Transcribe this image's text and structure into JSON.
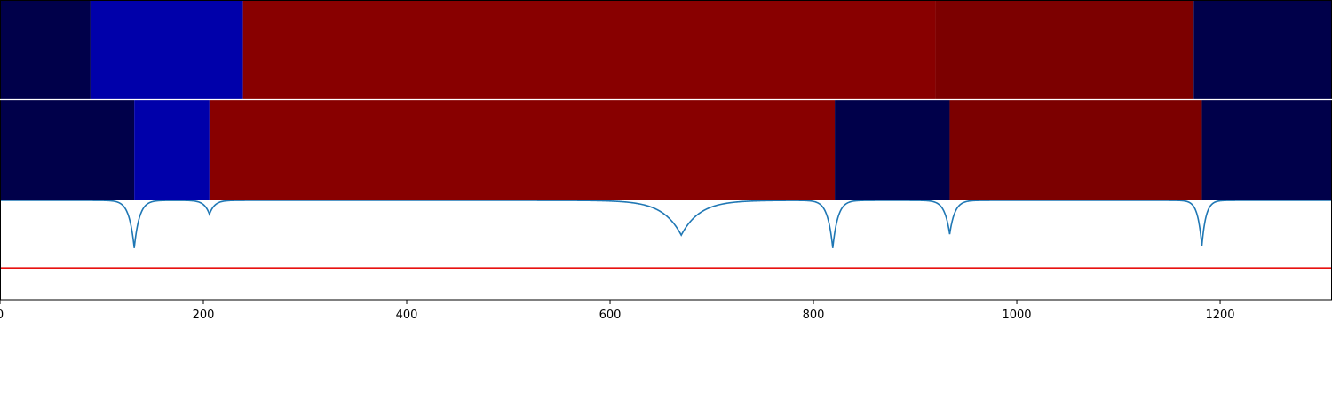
{
  "chart_data": {
    "type": "heatmap",
    "title": "",
    "xlabel": "",
    "ylabel": "",
    "xlim": [
      0,
      1310
    ],
    "x_ticks": [
      0,
      200,
      400,
      600,
      800,
      1000,
      1200
    ],
    "x_tick_labels": [
      "0",
      "200",
      "400",
      "600",
      "800",
      "1000",
      "1200"
    ],
    "colors": {
      "dark_navy": "#00004a",
      "blue": "#0000aa",
      "red": "#880000",
      "dark_red": "#7c0000",
      "signal_line": "#1f77b4",
      "threshold_line": "#e8110f"
    },
    "segment_rows": [
      {
        "segments": [
          {
            "start": 0,
            "end": 89,
            "color": "#00004a"
          },
          {
            "start": 89,
            "end": 239,
            "color": "#0000aa"
          },
          {
            "start": 239,
            "end": 920,
            "color": "#880000"
          },
          {
            "start": 920,
            "end": 1174,
            "color": "#7c0000"
          },
          {
            "start": 1174,
            "end": 1310,
            "color": "#00004a"
          }
        ]
      },
      {
        "segments": [
          {
            "start": 0,
            "end": 132,
            "color": "#00004a"
          },
          {
            "start": 132,
            "end": 206,
            "color": "#0000aa"
          },
          {
            "start": 206,
            "end": 821,
            "color": "#880000"
          },
          {
            "start": 821,
            "end": 934,
            "color": "#00004a"
          },
          {
            "start": 934,
            "end": 1182,
            "color": "#7c0000"
          },
          {
            "start": 1182,
            "end": 1310,
            "color": "#00004a"
          }
        ]
      }
    ],
    "signal": {
      "type": "line",
      "baseline": 0,
      "ylim": [
        -1.0,
        0.0
      ],
      "threshold": -0.68,
      "dips": [
        {
          "x": 132,
          "depth": -0.48
        },
        {
          "x": 206,
          "depth": -0.14
        },
        {
          "x": 670,
          "depth": -0.35
        },
        {
          "x": 819,
          "depth": -0.48
        },
        {
          "x": 934,
          "depth": -0.34
        },
        {
          "x": 1182,
          "depth": -0.46
        }
      ]
    }
  }
}
